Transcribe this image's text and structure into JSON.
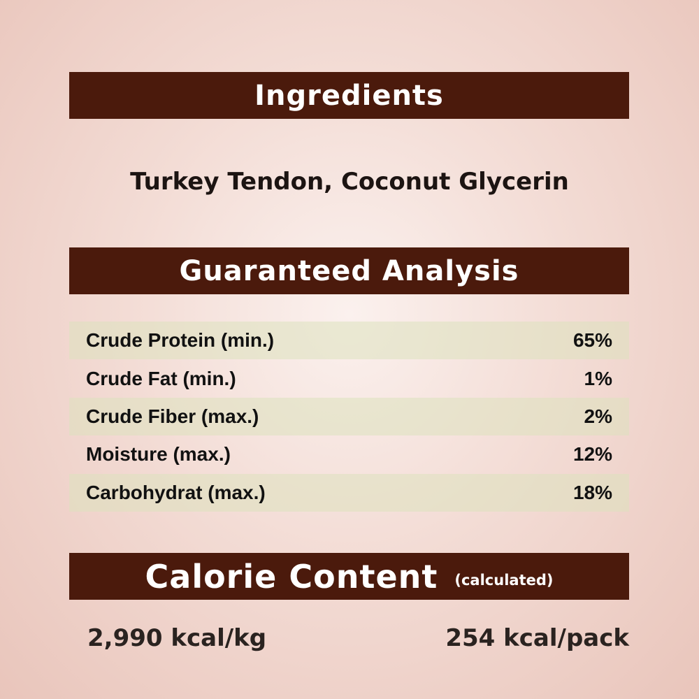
{
  "ingredients": {
    "heading": "Ingredients",
    "text": "Turkey Tendon, Coconut Glycerin"
  },
  "analysis": {
    "heading": "Guaranteed Analysis",
    "rows": [
      {
        "label": "Crude Protein (min.)",
        "value": "65%"
      },
      {
        "label": "Crude Fat (min.)",
        "value": "1%"
      },
      {
        "label": "Crude Fiber (max.)",
        "value": "2%"
      },
      {
        "label": "Moisture (max.)",
        "value": "12%"
      },
      {
        "label": "Carbohydrat (max.)",
        "value": "18%"
      }
    ]
  },
  "calories": {
    "heading": "Calorie Content",
    "note": "(calculated)",
    "per_kg": "2,990 kcal/kg",
    "per_pack": "254 kcal/pack"
  },
  "colors": {
    "header_bar": "#4b1a0c",
    "row_highlight": "#e3e3c8"
  }
}
